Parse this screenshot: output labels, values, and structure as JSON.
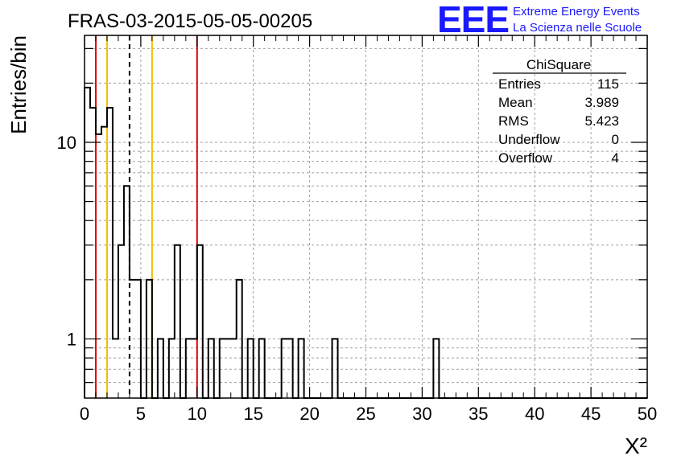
{
  "header": {
    "run_title": "FRAS-03-2015-05-05-00205",
    "logo_text": "EEE",
    "logo_line1": "Extreme Energy Events",
    "logo_line2": "La Scienza nelle Scuole"
  },
  "stats": {
    "title": "ChiSquare",
    "rows": [
      {
        "label": "Entries",
        "value": "115"
      },
      {
        "label": "Mean",
        "value": "3.989"
      },
      {
        "label": "RMS",
        "value": "5.423"
      },
      {
        "label": "Underflow",
        "value": "0"
      },
      {
        "label": "Overflow",
        "value": "4"
      }
    ]
  },
  "colors": {
    "hist": "#000000",
    "red_line": "#e00000",
    "orange_line": "#f0c000",
    "grid": "#a0a0a0",
    "logo": "#1a1aff"
  },
  "chart_data": {
    "type": "histogram",
    "xlabel": "X²",
    "ylabel": "Entries/bin",
    "xlim": [
      0,
      50
    ],
    "ylim": [
      0.5,
      35
    ],
    "log_y": true,
    "grid": true,
    "bin_width": 0.5,
    "x_ticks": [
      "0",
      "5",
      "10",
      "15",
      "20",
      "25",
      "30",
      "35",
      "40",
      "45",
      "50"
    ],
    "y_ticks": [
      {
        "value": 1,
        "label": "1"
      },
      {
        "value": 10,
        "label": "10"
      }
    ],
    "bins": [
      {
        "x": 0.0,
        "y": 19
      },
      {
        "x": 0.5,
        "y": 15
      },
      {
        "x": 1.0,
        "y": 11
      },
      {
        "x": 1.5,
        "y": 12
      },
      {
        "x": 2.0,
        "y": 15
      },
      {
        "x": 2.5,
        "y": 1
      },
      {
        "x": 3.0,
        "y": 3
      },
      {
        "x": 3.5,
        "y": 6
      },
      {
        "x": 4.0,
        "y": 2
      },
      {
        "x": 4.5,
        "y": 2
      },
      {
        "x": 5.5,
        "y": 2
      },
      {
        "x": 6.5,
        "y": 1
      },
      {
        "x": 7.5,
        "y": 1
      },
      {
        "x": 8.0,
        "y": 3
      },
      {
        "x": 9.0,
        "y": 1
      },
      {
        "x": 9.5,
        "y": 1
      },
      {
        "x": 10.0,
        "y": 3
      },
      {
        "x": 11.0,
        "y": 1
      },
      {
        "x": 12.0,
        "y": 1
      },
      {
        "x": 12.5,
        "y": 1
      },
      {
        "x": 13.0,
        "y": 1
      },
      {
        "x": 13.5,
        "y": 2
      },
      {
        "x": 14.5,
        "y": 1
      },
      {
        "x": 15.5,
        "y": 1
      },
      {
        "x": 17.5,
        "y": 1
      },
      {
        "x": 18.0,
        "y": 1
      },
      {
        "x": 19.0,
        "y": 1
      },
      {
        "x": 22.0,
        "y": 1
      },
      {
        "x": 31.0,
        "y": 1
      }
    ],
    "vertical_lines": [
      {
        "x": 1,
        "color": "red",
        "style": "solid"
      },
      {
        "x": 2,
        "color": "orange",
        "style": "solid"
      },
      {
        "x": 4,
        "color": "black",
        "style": "dashed"
      },
      {
        "x": 6,
        "color": "orange",
        "style": "solid"
      },
      {
        "x": 10,
        "color": "red",
        "style": "solid"
      }
    ]
  }
}
